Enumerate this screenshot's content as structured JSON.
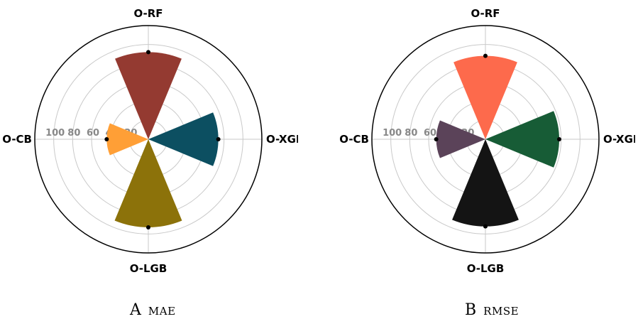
{
  "chart_data": [
    {
      "type": "polar-bar",
      "panel": "A",
      "title": "MAE",
      "categories": [
        "O-RF",
        "O-XGB",
        "O-LGB",
        "O-CB"
      ],
      "values": [
        92,
        74,
        93,
        44
      ],
      "colors": [
        "#943a31",
        "#0c4f61",
        "#8c720a",
        "#ff9f36"
      ],
      "radial_ticks": [
        "100",
        "80",
        "60",
        "40",
        "20"
      ],
      "radial_range": [
        0,
        120
      ],
      "grid": true
    },
    {
      "type": "polar-bar",
      "panel": "B",
      "title": "RMSE",
      "categories": [
        "O-RF",
        "O-XGB",
        "O-LGB",
        "O-CB"
      ],
      "values": [
        88,
        78,
        92,
        52
      ],
      "colors": [
        "#fd6a4c",
        "#175c36",
        "#141414",
        "#5b4359"
      ],
      "radial_ticks": [
        "100",
        "80",
        "60",
        "40",
        "20"
      ],
      "radial_range": [
        0,
        120
      ],
      "grid": true
    }
  ]
}
